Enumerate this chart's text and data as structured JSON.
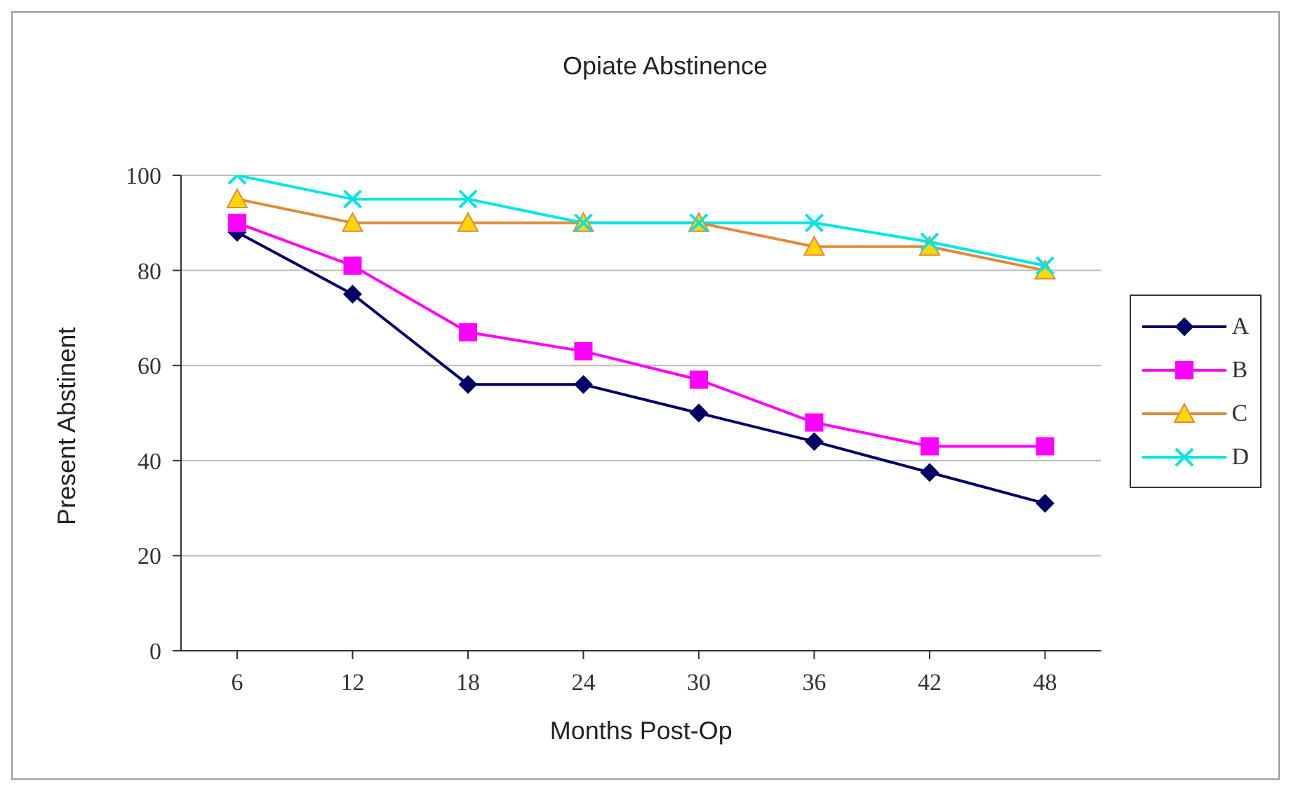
{
  "chart_data": {
    "type": "line",
    "title": "Opiate Abstinence",
    "xlabel": "Months Post-Op",
    "ylabel": "Present Abstinent",
    "categories": [
      "6",
      "12",
      "18",
      "24",
      "30",
      "36",
      "42",
      "48"
    ],
    "series": [
      {
        "name": "A",
        "color": "#000066",
        "marker": "diamond",
        "values": [
          88,
          75,
          56,
          56,
          50,
          44,
          37.5,
          31
        ]
      },
      {
        "name": "B",
        "color": "#ff00ff",
        "marker": "square",
        "values": [
          90,
          81,
          67,
          63,
          57,
          48,
          43,
          43
        ]
      },
      {
        "name": "C",
        "color": "#e08a3c",
        "marker": "triangle",
        "values": [
          95,
          90,
          90,
          90,
          90,
          85,
          85,
          80
        ]
      },
      {
        "name": "D",
        "color": "#00e5e5",
        "marker": "cross",
        "values": [
          100,
          95,
          95,
          90,
          90,
          90,
          86,
          81
        ]
      }
    ],
    "ylim": [
      0,
      100
    ],
    "yticks": [
      0,
      20,
      40,
      60,
      80,
      100
    ],
    "grid": "y",
    "legend": "right"
  }
}
